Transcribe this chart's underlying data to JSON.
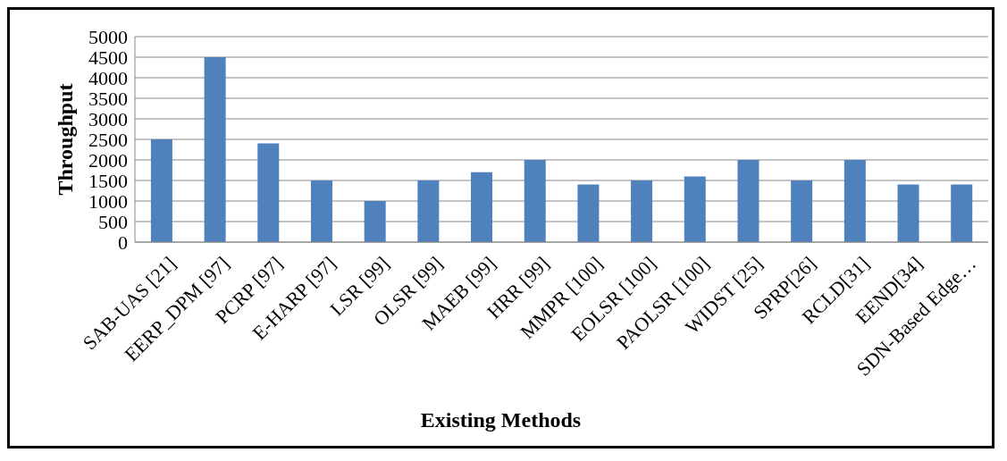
{
  "chart_data": {
    "type": "bar",
    "xlabel": "Existing Methods",
    "ylabel": "Throughput",
    "categories": [
      "SAB-UAS [21]",
      "EERP_DPM [97]",
      "PCRP [97]",
      "E-HARP [97]",
      "LSR [99]",
      "OLSR [99]",
      "MAEB [99]",
      "HRR [99]",
      "MMPR [100]",
      "EOLSR [100]",
      "PAOLSR [100]",
      "WIDST [25]",
      "SPRP[26]",
      "RCLD[31]",
      "EEND[34]",
      "SDN-Based Edge…"
    ],
    "values": [
      2500,
      4500,
      2400,
      1500,
      1000,
      1500,
      1700,
      2000,
      1400,
      1500,
      1600,
      2000,
      1500,
      2000,
      1400,
      1400
    ],
    "color": "#4f81bd",
    "ylim": [
      0,
      5000
    ],
    "yticks": [
      0,
      500,
      1000,
      1500,
      2000,
      2500,
      3000,
      3500,
      4000,
      4500,
      5000
    ],
    "grid": "y"
  }
}
